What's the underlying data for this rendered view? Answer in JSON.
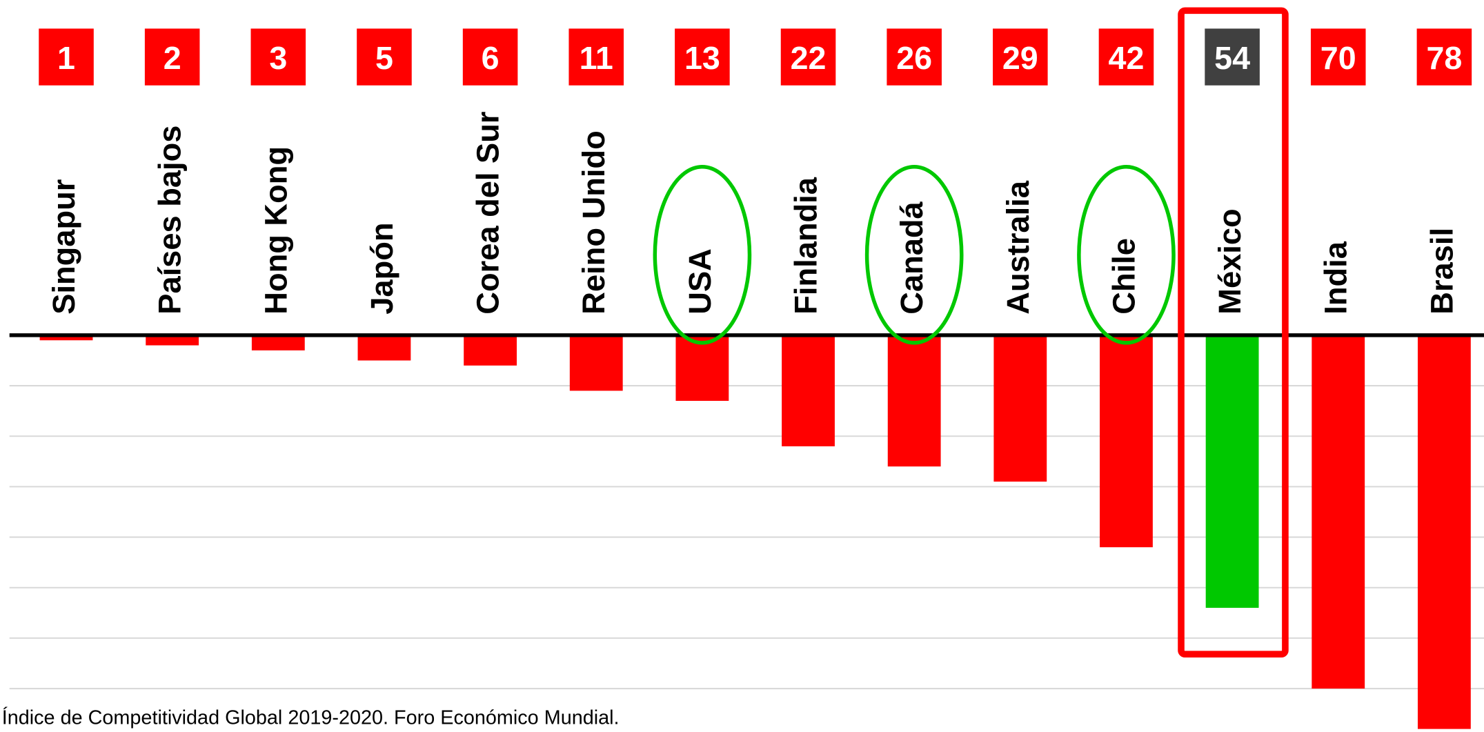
{
  "chart_data": {
    "type": "bar",
    "categories": [
      "Singapur",
      "Países bajos",
      "Hong Kong",
      "Japón",
      "Corea del Sur",
      "Reino Unido",
      "USA",
      "Finlandia",
      "Canadá",
      "Australia",
      "Chile",
      "México",
      "India",
      "Brasil"
    ],
    "values": [
      1,
      2,
      3,
      5,
      6,
      11,
      13,
      22,
      26,
      29,
      42,
      54,
      70,
      78
    ],
    "colors": [
      "#ff0000",
      "#ff0000",
      "#ff0000",
      "#ff0000",
      "#ff0000",
      "#ff0000",
      "#ff0000",
      "#ff0000",
      "#ff0000",
      "#ff0000",
      "#ff0000",
      "#00c800",
      "#ff0000",
      "#ff0000"
    ],
    "label_box_colors": [
      "#ff0000",
      "#ff0000",
      "#ff0000",
      "#ff0000",
      "#ff0000",
      "#ff0000",
      "#ff0000",
      "#ff0000",
      "#ff0000",
      "#ff0000",
      "#ff0000",
      "#404040",
      "#ff0000",
      "#ff0000"
    ],
    "circled": [
      6,
      8,
      10
    ],
    "boxed": [
      11
    ],
    "ylim": [
      0,
      78
    ],
    "yticks": [
      0,
      10,
      20,
      30,
      40,
      50,
      60,
      70
    ],
    "grid": true,
    "caption": "Índice de Competitividad Global 2019-2020. Foro Económico Mundial."
  }
}
